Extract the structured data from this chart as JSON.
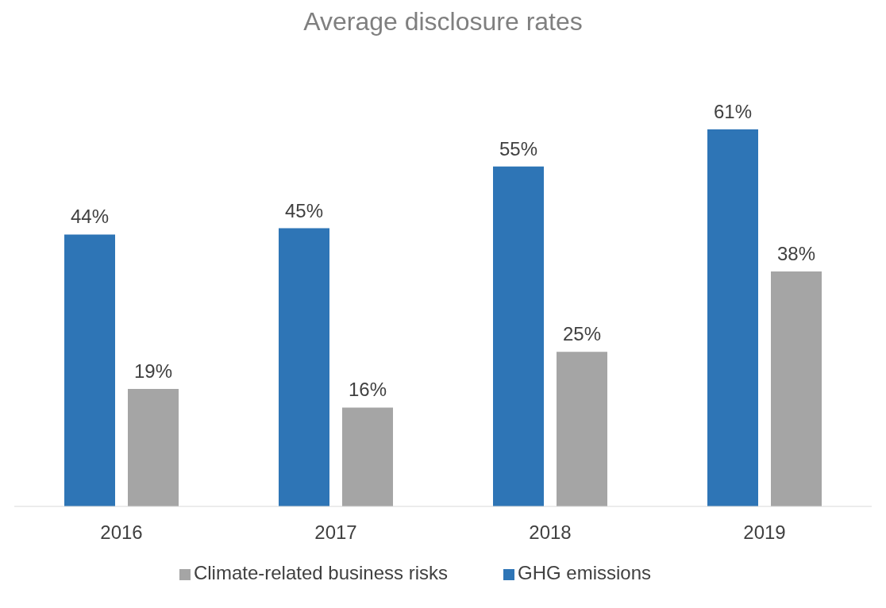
{
  "chart_data": {
    "type": "bar",
    "title": "Average disclosure rates",
    "categories": [
      "2016",
      "2017",
      "2018",
      "2019"
    ],
    "series": [
      {
        "name": "GHG emissions",
        "color": "#2e75b6",
        "values": [
          44,
          45,
          55,
          61
        ],
        "value_labels": [
          "44%",
          "45%",
          "55%",
          "61%"
        ]
      },
      {
        "name": "Climate-related business risks",
        "color": "#a5a5a5",
        "values": [
          19,
          16,
          25,
          38
        ],
        "value_labels": [
          "19%",
          "16%",
          "25%",
          "38%"
        ]
      }
    ],
    "legend": "bottom",
    "grid": false
  }
}
